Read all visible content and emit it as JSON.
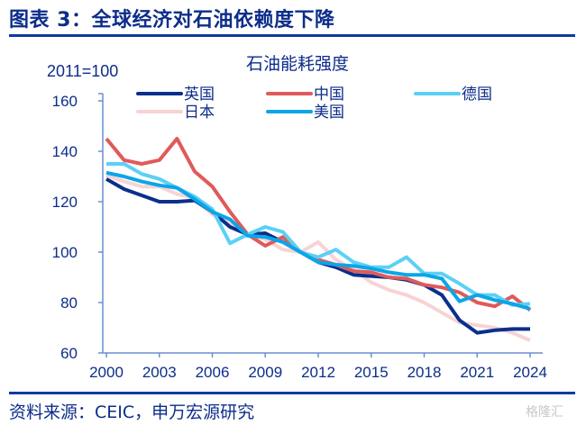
{
  "header": {
    "title": "图表 3：全球经济对石油依赖度下降"
  },
  "footer": {
    "source": "资料来源：CEIC，申万宏源研究",
    "watermark": "格隆汇"
  },
  "chart_data": {
    "type": "line",
    "title": "石油能耗强度",
    "unit_label": "2011=100",
    "xlabel": "",
    "ylabel": "",
    "ylim": [
      60,
      160
    ],
    "yticks": [
      60,
      80,
      100,
      120,
      140,
      160
    ],
    "xlim": [
      2000,
      2024
    ],
    "xticks": [
      2000,
      2003,
      2006,
      2009,
      2012,
      2015,
      2018,
      2021,
      2024
    ],
    "grid": false,
    "legend_position": "top",
    "x": [
      2000,
      2001,
      2002,
      2003,
      2004,
      2005,
      2006,
      2007,
      2008,
      2009,
      2010,
      2011,
      2012,
      2013,
      2014,
      2015,
      2016,
      2017,
      2018,
      2019,
      2020,
      2021,
      2022,
      2023,
      2024
    ],
    "series": [
      {
        "name": "英国",
        "color": "#0a2f8c",
        "values": [
          129,
          125,
          122.5,
          120,
          120,
          120.5,
          116,
          110,
          107,
          107.5,
          104,
          100,
          96,
          94,
          91,
          90.5,
          90,
          89,
          87,
          83,
          73,
          68,
          69,
          69.5,
          69.5
        ]
      },
      {
        "name": "中国",
        "color": "#e05a5a",
        "values": [
          145,
          136.5,
          135,
          136.5,
          145,
          132,
          126,
          116,
          107,
          102.5,
          106,
          100,
          97,
          95,
          92.5,
          92,
          90,
          89.5,
          87,
          86,
          84,
          80,
          78.5,
          82.5,
          77
        ]
      },
      {
        "name": "德国",
        "color": "#5cd0f5",
        "values": [
          135,
          135,
          131,
          129,
          125.5,
          122,
          117,
          103.5,
          107,
          110,
          108,
          100,
          98,
          101,
          96,
          94,
          94,
          98,
          91.5,
          91.5,
          87.5,
          83,
          83,
          79,
          79.5
        ]
      },
      {
        "name": "日本",
        "color": "#f8d3d4",
        "values": [
          130.5,
          128,
          126,
          126,
          123,
          121.5,
          115,
          111,
          107,
          105,
          101,
          100,
          104,
          97,
          93,
          88,
          85,
          83,
          80,
          76,
          72,
          71,
          70,
          68,
          65
        ]
      },
      {
        "name": "美国",
        "color": "#0aa6e8",
        "values": [
          131.5,
          130,
          128,
          126.5,
          125.5,
          121,
          116,
          113,
          106.5,
          106,
          104,
          100,
          96,
          95,
          94.5,
          93.5,
          92,
          91,
          91,
          89.5,
          80.5,
          83,
          81,
          79.5,
          77.5
        ]
      }
    ]
  }
}
